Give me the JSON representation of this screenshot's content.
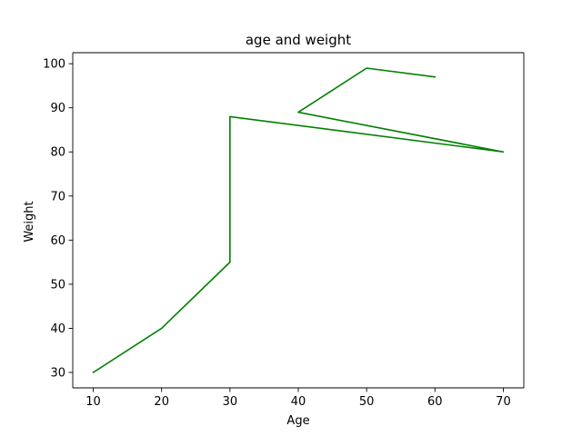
{
  "chart_data": {
    "type": "line",
    "title": "age and weight",
    "xlabel": "Age",
    "ylabel": "Weight",
    "xlim": [
      7,
      73
    ],
    "ylim": [
      26.5,
      102.5
    ],
    "x_ticks": [
      10,
      20,
      30,
      40,
      50,
      60,
      70
    ],
    "y_ticks": [
      30,
      40,
      50,
      60,
      70,
      80,
      90,
      100
    ],
    "grid": false,
    "series": [
      {
        "color": "#008000",
        "x": [
          10,
          20,
          30,
          30,
          70,
          40,
          50,
          60
        ],
        "y": [
          30,
          40,
          55,
          88,
          80,
          89,
          99,
          97
        ]
      }
    ]
  }
}
